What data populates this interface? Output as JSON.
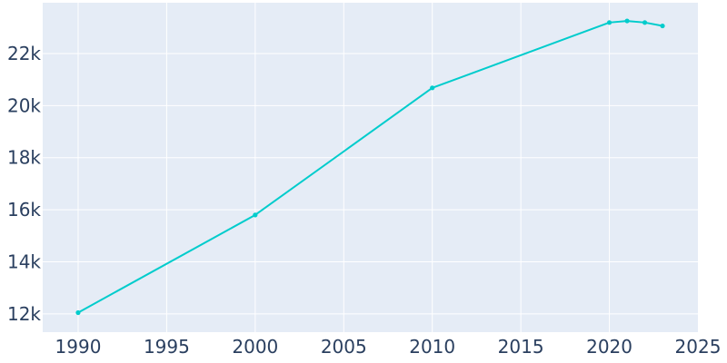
{
  "chart_data": {
    "type": "line",
    "title": "",
    "xlabel": "",
    "ylabel": "",
    "xlim": [
      1988,
      2025
    ],
    "ylim": [
      11300,
      23950
    ],
    "x_ticks": [
      1990,
      1995,
      2000,
      2005,
      2010,
      2015,
      2020,
      2025
    ],
    "x_tick_labels": [
      "1990",
      "1995",
      "2000",
      "2005",
      "2010",
      "2015",
      "2020",
      "2025"
    ],
    "y_ticks": [
      12000,
      14000,
      16000,
      18000,
      20000,
      22000
    ],
    "y_tick_labels": [
      "12k",
      "14k",
      "16k",
      "18k",
      "20k",
      "22k"
    ],
    "grid": true,
    "colors": {
      "background": "#e5ecf6",
      "grid": "#ffffff",
      "line": "#00cccc",
      "text": "#2a3f5f"
    },
    "series": [
      {
        "x": [
          1990,
          2000,
          2010,
          2020,
          2021,
          2022,
          2023
        ],
        "y": [
          12050,
          15800,
          20680,
          23190,
          23250,
          23190,
          23060
        ]
      }
    ]
  }
}
